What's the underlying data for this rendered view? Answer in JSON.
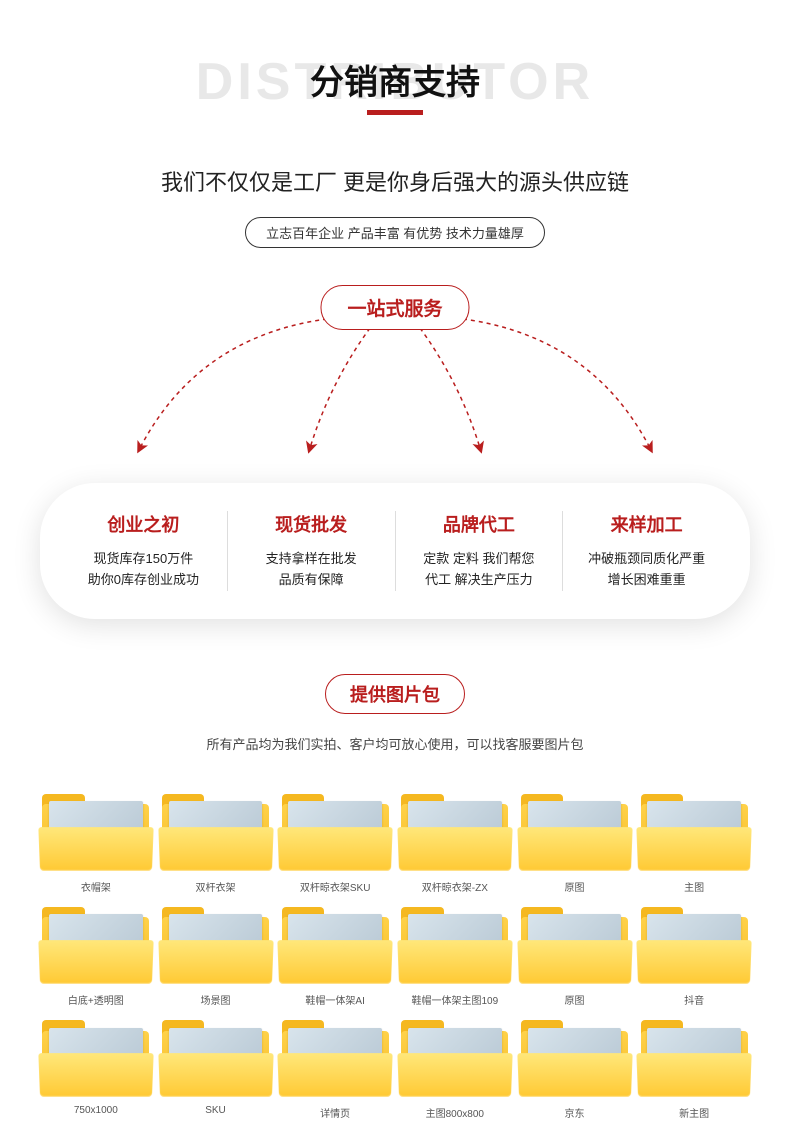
{
  "colors": {
    "accent": "#b91e1e",
    "bg_text": "#e8e8e8",
    "folder_light": "#ffe77a",
    "folder_dark": "#ffc933",
    "panel_shadow": "rgba(0,0,0,0.12)"
  },
  "header": {
    "bg_text": "DISTRIBUTOR",
    "title": "分销商支持"
  },
  "subtitle": "我们不仅仅是工厂 更是你身后强大的源头供应链",
  "tagline": "立志百年企业 产品丰富 有优势 技术力量雄厚",
  "hub_label": "一站式服务",
  "services": [
    {
      "title": "创业之初",
      "desc1": "现货库存150万件",
      "desc2": "助你0库存创业成功"
    },
    {
      "title": "现货批发",
      "desc1": "支持拿样在批发",
      "desc2": "品质有保障"
    },
    {
      "title": "品牌代工",
      "desc1": "定款 定料 我们帮您",
      "desc2": "代工 解决生产压力"
    },
    {
      "title": "来样加工",
      "desc1": "冲破瓶颈同质化严重",
      "desc2": "增长困难重重"
    }
  ],
  "imgpack": {
    "title": "提供图片包",
    "subtitle": "所有产品均为我们实拍、客户均可放心使用，可以找客服要图片包"
  },
  "folders": [
    "衣帽架",
    "双杆衣架",
    "双杆晾衣架SKU",
    "双杆晾衣架-ZX",
    "原图",
    "主图",
    "白底+透明图",
    "场景图",
    "鞋帽一体架AI",
    "鞋帽一体架主图109",
    "原图",
    "抖音",
    "750x1000",
    "SKU",
    "详情页",
    "主图800x800",
    "京东",
    "新主图"
  ]
}
